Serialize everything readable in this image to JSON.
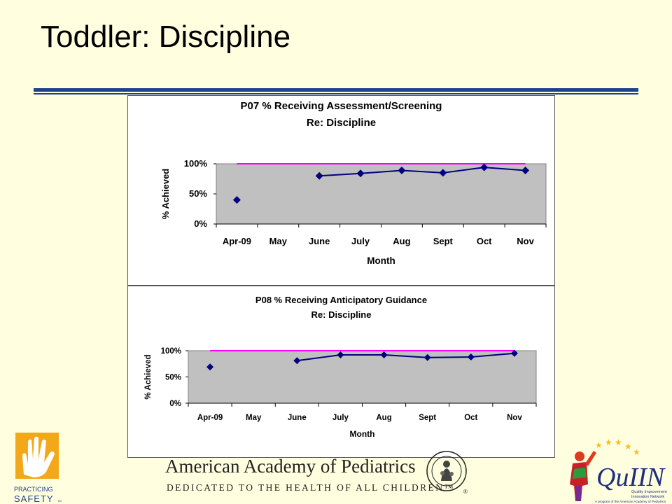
{
  "slide": {
    "title": "Toddler: Discipline"
  },
  "chart_data": [
    {
      "type": "line",
      "title": "P07 % Receiving Assessment/Screening",
      "subtitle": "Re: Discipline",
      "xlabel": "Month",
      "ylabel": "% Achieved",
      "categories": [
        "Apr-09",
        "May",
        "June",
        "July",
        "Aug",
        "Sept",
        "Oct",
        "Nov"
      ],
      "yticks": [
        "0%",
        "50%",
        "100%"
      ],
      "ylim": [
        0,
        100
      ],
      "series": [
        {
          "values": [
            40,
            null,
            80,
            84,
            89,
            85,
            94,
            89
          ],
          "color": "#000080"
        },
        {
          "values": [
            100,
            100,
            100,
            100,
            100,
            100,
            100,
            100
          ],
          "color": "#ff00ff"
        }
      ],
      "plot_background": "#c0c0c0",
      "grid": false
    },
    {
      "type": "line",
      "title": "P08 % Receiving Anticipatory Guidance",
      "subtitle": "Re: Discipline",
      "xlabel": "Month",
      "ylabel": "% Achieved",
      "categories": [
        "Apr-09",
        "May",
        "June",
        "July",
        "Aug",
        "Sept",
        "Oct",
        "Nov"
      ],
      "yticks": [
        "0%",
        "50%",
        "100%"
      ],
      "ylim": [
        0,
        100
      ],
      "series": [
        {
          "values": [
            69,
            null,
            81,
            92,
            92,
            87,
            88,
            95
          ],
          "color": "#000080"
        },
        {
          "values": [
            100,
            100,
            100,
            100,
            100,
            100,
            100,
            100
          ],
          "color": "#ff00ff"
        }
      ],
      "plot_background": "#c0c0c0",
      "grid": false
    }
  ],
  "footer": {
    "left_logo": {
      "line1": "PRACTICING",
      "line2": "SAFETY",
      "tm": "TM"
    },
    "aap_name": "American Academy of Pediatrics",
    "aap_tagline": "DEDICATED TO THE HEALTH OF ALL CHILDREN™",
    "registered": "®",
    "quiin": {
      "name": "QuIIN",
      "line1": "Quality Improvement",
      "line2": "Innovation Network",
      "line3": "A program of the American Academy of Pediatrics"
    }
  }
}
